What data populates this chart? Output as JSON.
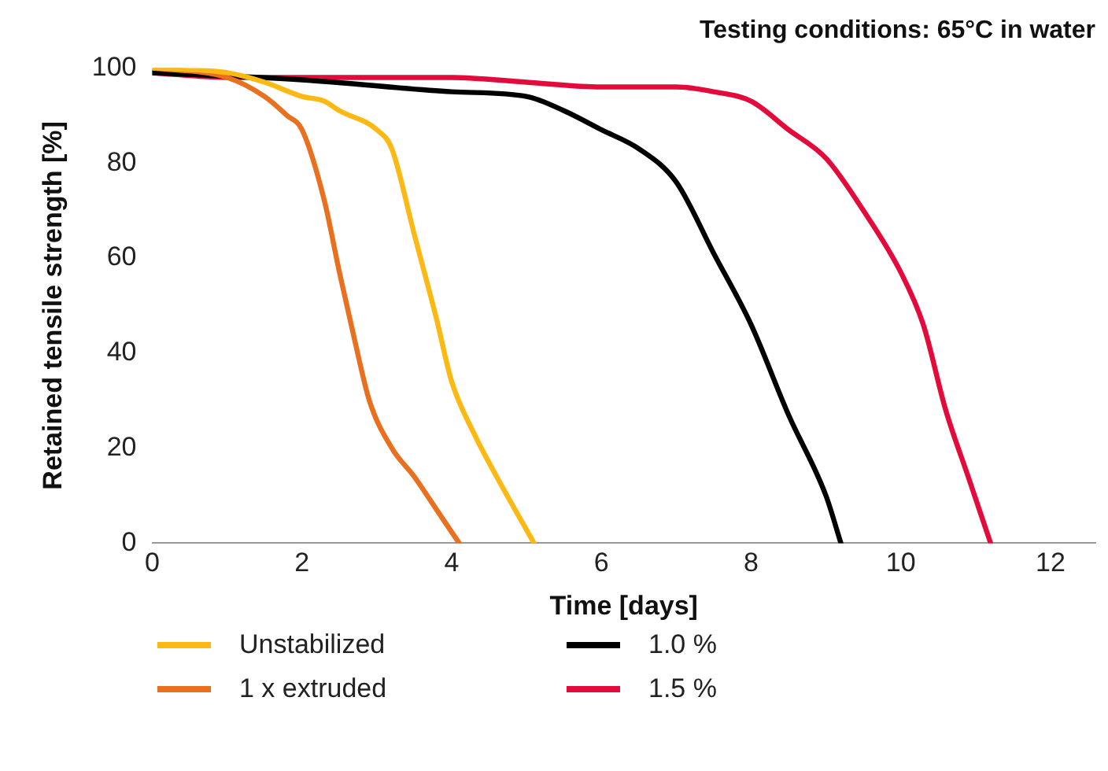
{
  "chart_data": {
    "type": "line",
    "title": "Testing conditions: 65°C in water",
    "xlabel": "Time [days]",
    "ylabel": "Retained tensile strength [%]",
    "xlim": [
      0,
      12.6
    ],
    "xticks": [
      0,
      2,
      4,
      6,
      8,
      10,
      12
    ],
    "ylim": [
      0,
      100
    ],
    "yticks": [
      0,
      20,
      40,
      60,
      80,
      100
    ],
    "grid": false,
    "legend": "bottom",
    "marker": "none",
    "line_style": "solid",
    "series": [
      {
        "name": "Unstabilized",
        "color": "#fdb913",
        "x": [
          0,
          1,
          1.5,
          2,
          2.3,
          2.5,
          3,
          3.2,
          3.5,
          3.8,
          4,
          4.3,
          4.6,
          5.1
        ],
        "values": [
          100,
          99,
          97,
          94,
          93,
          91,
          87,
          83,
          65,
          47,
          34,
          23,
          14,
          0
        ]
      },
      {
        "name": "1 x extruded",
        "color": "#e8701f",
        "x": [
          0,
          1,
          1.5,
          1.8,
          2,
          2.3,
          2.5,
          2.7,
          2.9,
          3.2,
          3.5,
          3.8,
          4.1
        ],
        "values": [
          100,
          98,
          94,
          90,
          87,
          72,
          57,
          43,
          30,
          20,
          14,
          7,
          0
        ]
      },
      {
        "name": "1.0 %",
        "color": "#000000",
        "x": [
          0,
          2,
          4,
          5,
          5.5,
          6,
          6.5,
          7,
          7.5,
          8,
          8.5,
          9,
          9.2
        ],
        "values": [
          99,
          97.5,
          95,
          94,
          91,
          87,
          83,
          76,
          61,
          46,
          27,
          10,
          0
        ]
      },
      {
        "name": "1.5 %",
        "color": "#e30b3c",
        "x": [
          0,
          1,
          3,
          4,
          5,
          6,
          7,
          7.5,
          8,
          8.5,
          9,
          9.5,
          10,
          10.3,
          10.6,
          10.9,
          11.2
        ],
        "values": [
          99,
          98,
          98,
          98,
          97,
          96,
          96,
          95,
          93,
          87,
          81,
          70,
          57,
          46,
          28,
          14,
          0
        ]
      }
    ]
  }
}
